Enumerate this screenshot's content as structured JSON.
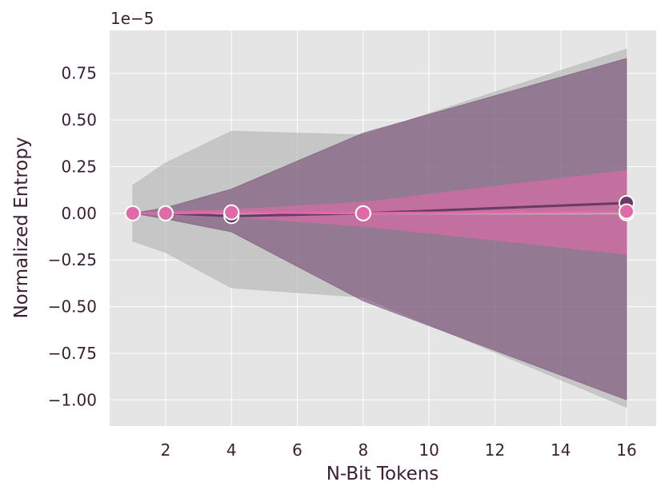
{
  "chart_data": {
    "type": "line",
    "title": "",
    "xlabel": "N-Bit Tokens",
    "ylabel": "Normalized Entropy",
    "y_offset_label": "1e−5",
    "xlim": [
      0.3,
      16.9
    ],
    "ylim": [
      -1.14,
      0.98
    ],
    "x_ticks": [
      2,
      4,
      6,
      8,
      10,
      12,
      14,
      16
    ],
    "x_tick_labels": [
      "2",
      "4",
      "6",
      "8",
      "10",
      "12",
      "14",
      "16"
    ],
    "y_ticks": [
      0.75,
      0.5,
      0.25,
      0.0,
      -0.25,
      -0.5,
      -0.75,
      -1.0
    ],
    "y_tick_labels": [
      "0.75",
      "0.50",
      "0.25",
      "0.00",
      "−0.25",
      "−0.50",
      "−0.75",
      "−1.00"
    ],
    "grid": true,
    "legend": "none",
    "background_color": "#e5e5e5",
    "series": [
      {
        "color": "#b0b0b0",
        "band_opacity": 0.6,
        "marker_face": "#b0b0b0",
        "x": [
          1,
          2,
          4,
          8,
          16
        ],
        "y": [
          0.0,
          0.0,
          0.0,
          0.0,
          0.0
        ],
        "upper": [
          0.15,
          0.27,
          0.44,
          0.42,
          0.88
        ],
        "lower": [
          -0.15,
          -0.21,
          -0.4,
          -0.45,
          -1.04
        ]
      },
      {
        "color": "#6a3a66",
        "band_opacity": 0.55,
        "marker_face": "#6a3a66",
        "x": [
          1,
          2,
          4,
          8,
          16
        ],
        "y": [
          0.0,
          0.0,
          -0.015,
          0.0,
          0.055
        ],
        "upper": [
          0.0,
          0.03,
          0.13,
          0.43,
          0.83
        ],
        "lower": [
          0.0,
          -0.03,
          -0.1,
          -0.47,
          -1.0
        ]
      },
      {
        "color": "#e06aa8",
        "band_opacity": 0.6,
        "marker_face": "#e06aa8",
        "x": [
          1,
          2,
          4,
          8,
          16
        ],
        "y": [
          0.0,
          0.0,
          0.005,
          0.0,
          0.01
        ],
        "upper": [
          0.0,
          0.01,
          0.02,
          0.06,
          0.23
        ],
        "lower": [
          0.0,
          -0.01,
          -0.02,
          -0.07,
          -0.22
        ]
      }
    ]
  }
}
